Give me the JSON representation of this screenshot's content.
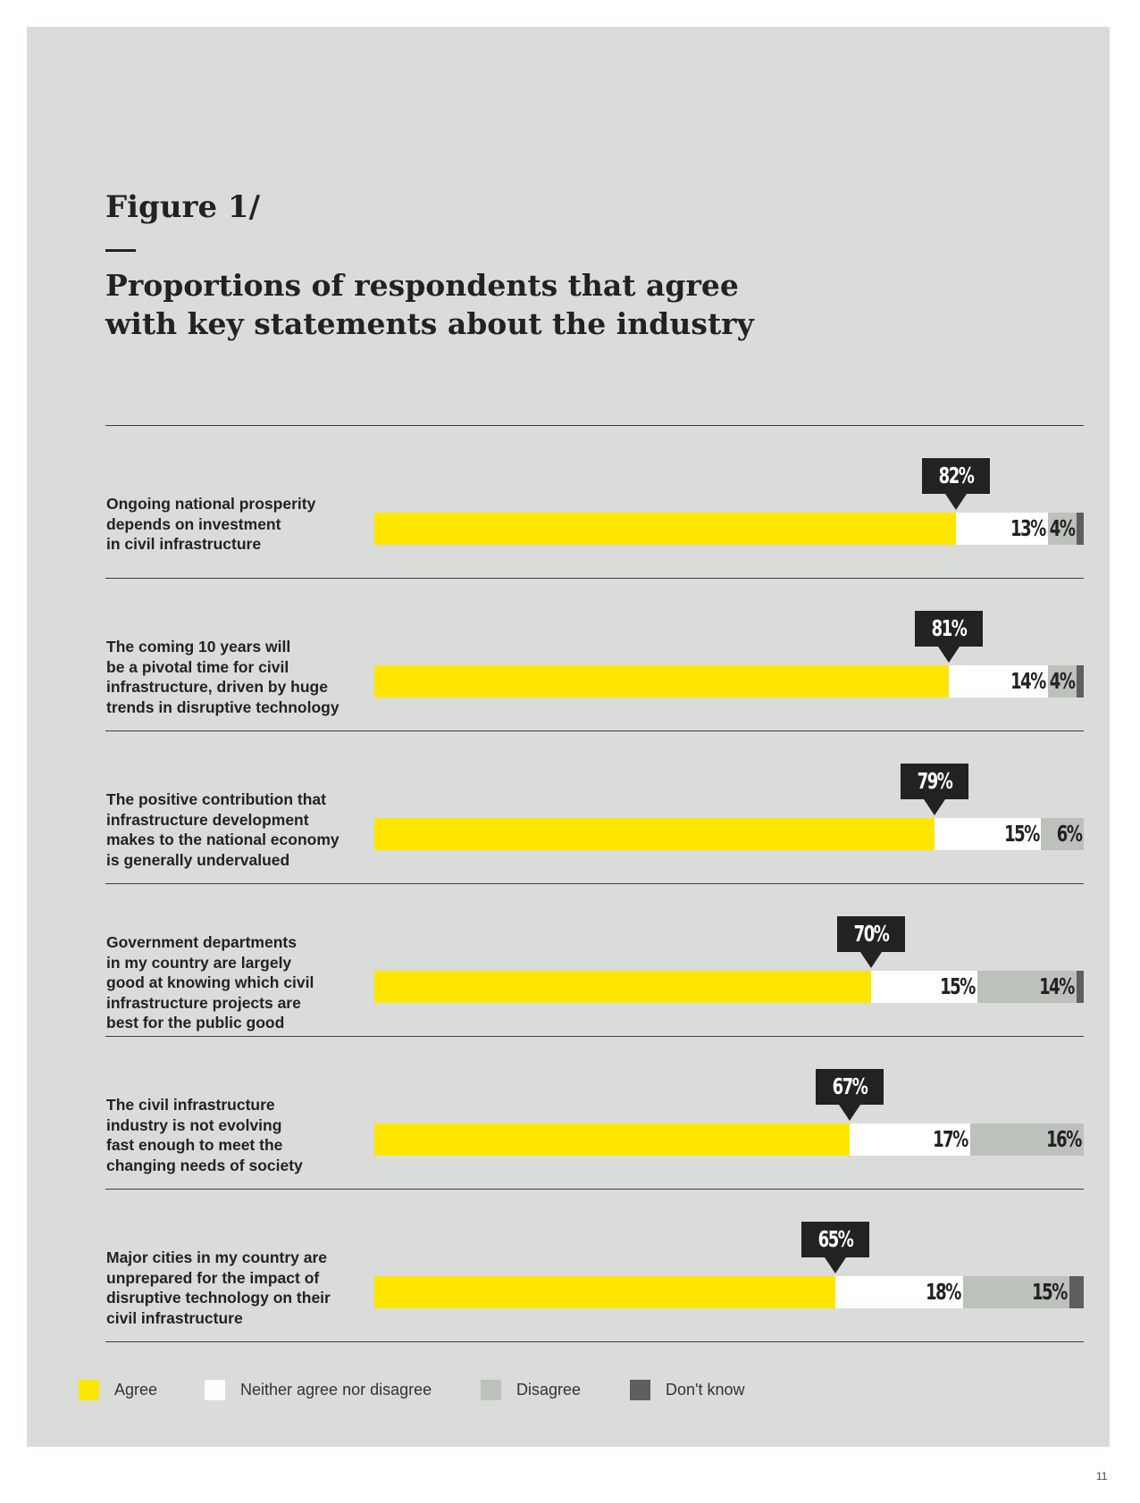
{
  "figure": {
    "label": "Figure 1/",
    "title": "Proportions of respondents that agree with key statements about the industry"
  },
  "colors": {
    "agree": "#ffe600",
    "neither": "#ffffff",
    "disagree": "#bdc1bb",
    "dont_know": "#5e5e5e",
    "callout": "#222222",
    "panel": "#d9dcd9"
  },
  "chart_data": {
    "type": "bar",
    "orientation": "horizontal",
    "stacked": true,
    "unit": "%",
    "xlim": [
      0,
      100
    ],
    "series": [
      {
        "name": "Agree",
        "values": [
          82,
          81,
          79,
          70,
          67,
          65
        ]
      },
      {
        "name": "Neither agree nor disagree",
        "values": [
          13,
          14,
          15,
          15,
          17,
          18
        ]
      },
      {
        "name": "Disagree",
        "values": [
          4,
          4,
          6,
          14,
          16,
          15
        ]
      },
      {
        "name": "Don't know",
        "values": [
          1,
          1,
          0,
          1,
          0,
          2
        ]
      }
    ],
    "labels": [
      {
        "agree": "82%",
        "neither": "13%",
        "disagree": "4%"
      },
      {
        "agree": "81%",
        "neither": "14%",
        "disagree": "4%"
      },
      {
        "agree": "79%",
        "neither": "15%",
        "disagree": "6%"
      },
      {
        "agree": "70%",
        "neither": "15%",
        "disagree": "14%"
      },
      {
        "agree": "67%",
        "neither": "17%",
        "disagree": "16%"
      },
      {
        "agree": "65%",
        "neither": "18%",
        "disagree": "15%"
      }
    ],
    "categories": [
      [
        "Ongoing national prosperity",
        "depends on investment",
        "in civil infrastructure"
      ],
      [
        "The coming 10 years will",
        "be a pivotal time for civil",
        "infrastructure, driven by huge",
        "trends in disruptive technology"
      ],
      [
        "The positive contribution that",
        "infrastructure development",
        "makes to the national economy",
        "is generally undervalued"
      ],
      [
        "Government departments",
        "in my country are largely",
        "good at knowing which civil",
        "infrastructure projects are",
        "best for the public good"
      ],
      [
        "The civil infrastructure",
        "industry is not evolving",
        "fast enough to meet the",
        "changing needs of society"
      ],
      [
        "Major cities in my country are",
        "unprepared for the impact of",
        "disruptive technology on their",
        "civil infrastructure"
      ]
    ],
    "legend": [
      "Agree",
      "Neither agree nor disagree",
      "Disagree",
      "Don't know"
    ],
    "legend_position": "bottom"
  },
  "page_number": "11"
}
